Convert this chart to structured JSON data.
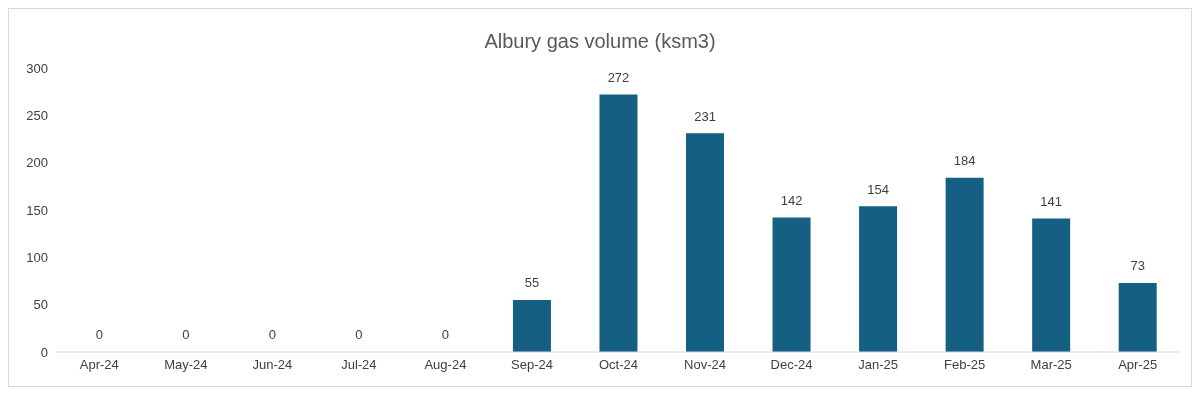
{
  "chart_data": {
    "type": "bar",
    "title": "Albury gas volume (ksm3)",
    "categories": [
      "Apr-24",
      "May-24",
      "Jun-24",
      "Jul-24",
      "Aug-24",
      "Sep-24",
      "Oct-24",
      "Nov-24",
      "Dec-24",
      "Jan-25",
      "Feb-25",
      "Mar-25",
      "Apr-25"
    ],
    "values": [
      0,
      0,
      0,
      0,
      0,
      55,
      272,
      231,
      142,
      154,
      184,
      141,
      73
    ],
    "color": "#145f82",
    "ylim": [
      0,
      300
    ],
    "yticks": [
      0,
      50,
      100,
      150,
      200,
      250,
      300
    ],
    "data_labels": true
  }
}
